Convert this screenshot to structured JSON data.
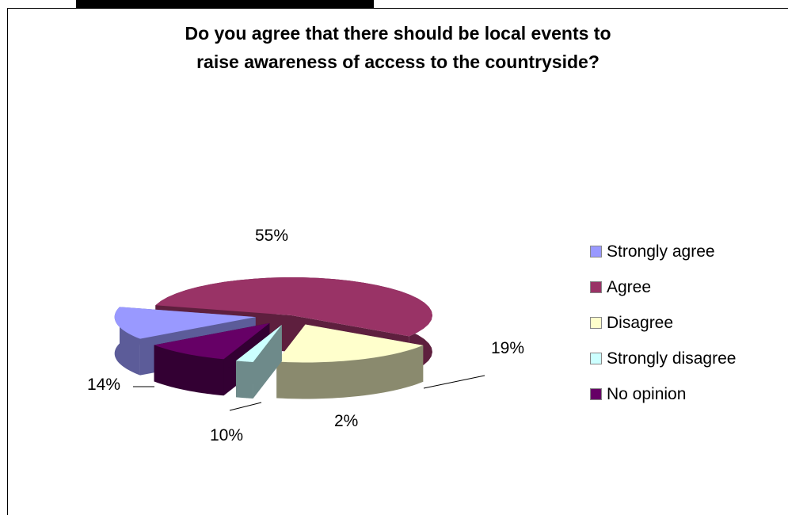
{
  "chart_data": {
    "type": "pie",
    "title_lines": [
      "Do you agree that there should be local events to",
      "raise awareness of access to the countryside?"
    ],
    "categories": [
      "Strongly agree",
      "Agree",
      "Disagree",
      "Strongly disagree",
      "No opinion"
    ],
    "values": [
      14,
      55,
      19,
      2,
      10
    ],
    "labels": [
      "14%",
      "55%",
      "19%",
      "2%",
      "10%"
    ],
    "colors": [
      "#9999ff",
      "#993366",
      "#ffffcc",
      "#ccffff",
      "#660066"
    ],
    "side_colors": [
      "#5c5c99",
      "#5e1f3e",
      "#8a8a6e",
      "#6e8a8a",
      "#330033"
    ],
    "legend_position": "right",
    "style": "exploded-3d"
  }
}
